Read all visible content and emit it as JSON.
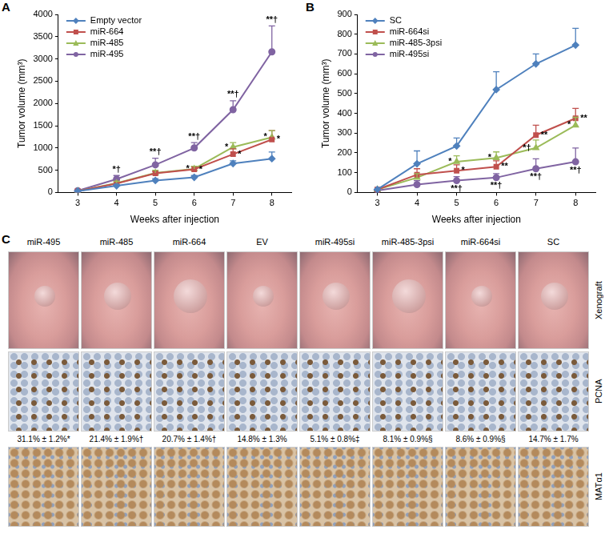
{
  "chart_data": [
    {
      "type": "line",
      "panel_label": "A",
      "x_label": "Weeks after injection",
      "y_label": "Tumor volume (mm³)",
      "categories": [
        3,
        4,
        5,
        6,
        7,
        8
      ],
      "ylim": [
        0,
        4000
      ],
      "yticks": [
        0,
        500,
        1000,
        1500,
        2000,
        2500,
        3000,
        3500,
        4000
      ],
      "grid": false,
      "legend": "upper left",
      "series": [
        {
          "name": "Empty vector",
          "color": "#4f81bd",
          "marker": "diamond",
          "values": [
            30,
            150,
            270,
            340,
            650,
            760
          ],
          "errors": [
            null,
            30,
            40,
            40,
            60,
            150
          ],
          "annotations": [
            null,
            null,
            null,
            null,
            null,
            null
          ]
        },
        {
          "name": "miR-664",
          "color": "#c0504d",
          "marker": "square",
          "values": [
            30,
            200,
            430,
            520,
            860,
            1190
          ],
          "errors": [
            null,
            40,
            40,
            60,
            120,
            200
          ],
          "annotations": [
            null,
            null,
            null,
            "*",
            "*",
            "*"
          ]
        },
        {
          "name": "miR-485",
          "color": "#9bbb59",
          "marker": "triangle",
          "values": [
            30,
            210,
            440,
            530,
            1020,
            1240
          ],
          "errors": [
            null,
            40,
            60,
            60,
            100,
            150
          ],
          "annotations": [
            null,
            null,
            null,
            "*",
            "*",
            "*"
          ]
        },
        {
          "name": "miR-495",
          "color": "#8064a2",
          "marker": "circle",
          "values": [
            40,
            300,
            620,
            1000,
            1860,
            3160
          ],
          "errors": [
            null,
            80,
            150,
            120,
            200,
            580
          ],
          "annotations": [
            null,
            "*†",
            "**†",
            "**†",
            "**†",
            "**†"
          ]
        }
      ]
    },
    {
      "type": "line",
      "panel_label": "B",
      "x_label": "Weeks after injection",
      "y_label": "Tumor volume (mm³)",
      "categories": [
        3,
        4,
        5,
        6,
        7,
        8
      ],
      "ylim": [
        0,
        900
      ],
      "yticks": [
        0,
        100,
        200,
        300,
        400,
        500,
        600,
        700,
        800,
        900
      ],
      "grid": false,
      "legend": "upper left",
      "series": [
        {
          "name": "SC",
          "color": "#4f81bd",
          "marker": "diamond",
          "values": [
            15,
            145,
            235,
            520,
            650,
            745
          ],
          "errors": [
            null,
            65,
            40,
            90,
            50,
            85
          ],
          "annotations": [
            null,
            null,
            null,
            null,
            null,
            null
          ]
        },
        {
          "name": "miR-664si",
          "color": "#c0504d",
          "marker": "square",
          "values": [
            15,
            90,
            110,
            130,
            290,
            375
          ],
          "errors": [
            null,
            30,
            30,
            30,
            50,
            50
          ],
          "annotations": [
            null,
            null,
            "*",
            "**",
            "**",
            "**"
          ]
        },
        {
          "name": "miR-485-3psi",
          "color": "#9bbb59",
          "marker": "triangle",
          "values": [
            15,
            75,
            155,
            175,
            225,
            340
          ],
          "errors": [
            null,
            20,
            30,
            30,
            40,
            40
          ],
          "annotations": [
            null,
            null,
            "*",
            "*",
            "*†",
            "*"
          ]
        },
        {
          "name": "miR-495si",
          "color": "#8064a2",
          "marker": "circle",
          "values": [
            10,
            40,
            60,
            75,
            120,
            155
          ],
          "errors": [
            null,
            20,
            20,
            20,
            50,
            70
          ],
          "annotations": [
            null,
            null,
            "**†",
            "**†",
            "**†",
            "**†"
          ]
        }
      ]
    }
  ],
  "panel_c": {
    "panel_label": "C",
    "columns": [
      "miR-495",
      "miR-485",
      "miR-664",
      "EV",
      "miR-495si",
      "miR-485-3psi",
      "miR-664si",
      "SC"
    ],
    "rows": [
      "Xenograft",
      "PCNA",
      "MATα1"
    ],
    "pcna_percentages": [
      "31.1% ± 1.2%*",
      "21.4% ± 1.9%†",
      "20.7% ± 1.4%†",
      "14.8% ± 1.3%",
      "5.1% ± 0.8%‡",
      "8.1% ± 0.9%§",
      "8.6% ± 0.9%§",
      "14.7% ± 1.7%"
    ]
  }
}
